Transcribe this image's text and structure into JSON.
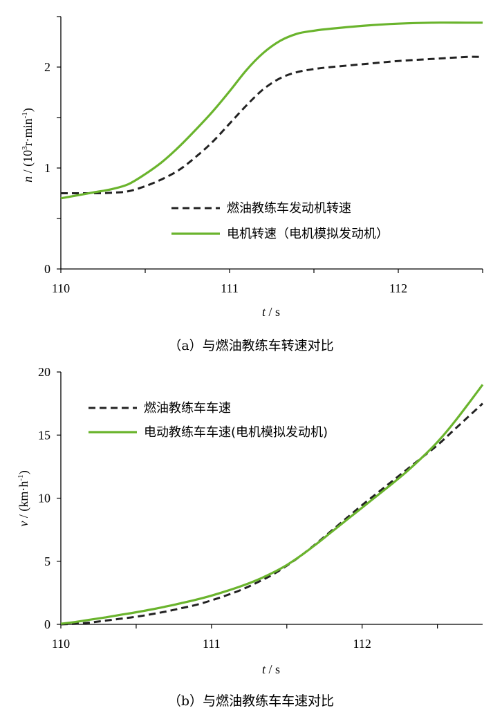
{
  "chart_data": [
    {
      "type": "line",
      "caption": "（a）与燃油教练车转速对比",
      "xlabel_var": "t",
      "xlabel_unit": "s",
      "ylabel_var": "n",
      "ylabel_unit_pre": "(10",
      "ylabel_unit_sup": "3",
      "ylabel_unit_mid": "r·min",
      "ylabel_unit_sup2": "-1",
      "ylabel_unit_post": ")",
      "xlim": [
        110,
        112.5
      ],
      "ylim": [
        0,
        2.5
      ],
      "xticks": [
        110,
        111,
        112
      ],
      "xtick_labels": [
        "110",
        "111",
        "112"
      ],
      "xminor": [
        110.5,
        111.5,
        112.5
      ],
      "yticks": [
        0,
        1,
        2
      ],
      "ytick_labels": [
        "0",
        "1",
        "2"
      ],
      "yminor": [
        0.5,
        1.5,
        2.5
      ],
      "legend_position": "center-right",
      "series": [
        {
          "name": "燃油教练车发动机转速",
          "style": "dashed",
          "color": "#222222",
          "points": [
            [
              110,
              0.75
            ],
            [
              110.1,
              0.75
            ],
            [
              110.2,
              0.75
            ],
            [
              110.3,
              0.755
            ],
            [
              110.4,
              0.77
            ],
            [
              110.5,
              0.82
            ],
            [
              110.6,
              0.89
            ],
            [
              110.7,
              0.98
            ],
            [
              110.8,
              1.11
            ],
            [
              110.9,
              1.26
            ],
            [
              111.0,
              1.44
            ],
            [
              111.1,
              1.62
            ],
            [
              111.2,
              1.78
            ],
            [
              111.3,
              1.89
            ],
            [
              111.4,
              1.95
            ],
            [
              111.5,
              1.98
            ],
            [
              111.6,
              2.0
            ],
            [
              111.8,
              2.03
            ],
            [
              112.0,
              2.06
            ],
            [
              112.2,
              2.08
            ],
            [
              112.4,
              2.1
            ],
            [
              112.5,
              2.1
            ]
          ]
        },
        {
          "name": "电机转速（电机模拟发动机）",
          "style": "solid",
          "color": "#6ab42d",
          "points": [
            [
              110,
              0.7
            ],
            [
              110.1,
              0.73
            ],
            [
              110.2,
              0.76
            ],
            [
              110.3,
              0.79
            ],
            [
              110.4,
              0.84
            ],
            [
              110.5,
              0.94
            ],
            [
              110.6,
              1.06
            ],
            [
              110.7,
              1.21
            ],
            [
              110.8,
              1.38
            ],
            [
              110.9,
              1.56
            ],
            [
              111.0,
              1.76
            ],
            [
              111.1,
              1.97
            ],
            [
              111.2,
              2.14
            ],
            [
              111.3,
              2.26
            ],
            [
              111.4,
              2.33
            ],
            [
              111.5,
              2.36
            ],
            [
              111.6,
              2.38
            ],
            [
              111.8,
              2.41
            ],
            [
              112.0,
              2.43
            ],
            [
              112.2,
              2.44
            ],
            [
              112.4,
              2.44
            ],
            [
              112.5,
              2.44
            ]
          ]
        }
      ]
    },
    {
      "type": "line",
      "caption": "（b）与燃油教练车车速对比",
      "xlabel_var": "t",
      "xlabel_unit": "s",
      "ylabel_var": "v",
      "ylabel_unit_pre": "(km·h",
      "ylabel_unit_sup": "-1",
      "ylabel_unit_post": ")",
      "xlim": [
        110,
        112.8
      ],
      "ylim": [
        0,
        20
      ],
      "xticks": [
        110,
        111,
        112
      ],
      "xtick_labels": [
        "110",
        "111",
        "112"
      ],
      "xminor": [
        110.5,
        111.5,
        112.5
      ],
      "yticks": [
        0,
        5,
        10,
        15,
        20
      ],
      "ytick_labels": [
        "0",
        "5",
        "10",
        "15",
        "20"
      ],
      "legend_position": "top-left",
      "series": [
        {
          "name": "燃油教练车车速",
          "style": "dashed",
          "color": "#222222",
          "points": [
            [
              110,
              0
            ],
            [
              110.1,
              0.05
            ],
            [
              110.2,
              0.15
            ],
            [
              110.3,
              0.3
            ],
            [
              110.4,
              0.45
            ],
            [
              110.5,
              0.6
            ],
            [
              110.6,
              0.8
            ],
            [
              110.7,
              1.02
            ],
            [
              110.8,
              1.28
            ],
            [
              110.9,
              1.55
            ],
            [
              111.0,
              1.9
            ],
            [
              111.1,
              2.3
            ],
            [
              111.2,
              2.75
            ],
            [
              111.3,
              3.3
            ],
            [
              111.4,
              3.9
            ],
            [
              111.5,
              4.65
            ],
            [
              111.6,
              5.5
            ],
            [
              111.7,
              6.45
            ],
            [
              111.8,
              7.45
            ],
            [
              111.9,
              8.45
            ],
            [
              112.0,
              9.45
            ],
            [
              112.1,
              10.4
            ],
            [
              112.2,
              11.35
            ],
            [
              112.3,
              12.3
            ],
            [
              112.4,
              13.25
            ],
            [
              112.5,
              14.2
            ],
            [
              112.6,
              15.3
            ],
            [
              112.7,
              16.4
            ],
            [
              112.8,
              17.5
            ]
          ]
        },
        {
          "name": "电动教练车车速(电机模拟发动机)",
          "style": "solid",
          "color": "#6ab42d",
          "points": [
            [
              110,
              0.05
            ],
            [
              110.1,
              0.2
            ],
            [
              110.2,
              0.38
            ],
            [
              110.3,
              0.56
            ],
            [
              110.4,
              0.76
            ],
            [
              110.5,
              0.96
            ],
            [
              110.6,
              1.18
            ],
            [
              110.7,
              1.42
            ],
            [
              110.8,
              1.68
            ],
            [
              110.9,
              1.96
            ],
            [
              111.0,
              2.28
            ],
            [
              111.1,
              2.64
            ],
            [
              111.2,
              3.04
            ],
            [
              111.3,
              3.5
            ],
            [
              111.4,
              4.05
            ],
            [
              111.5,
              4.7
            ],
            [
              111.6,
              5.5
            ],
            [
              111.7,
              6.4
            ],
            [
              111.8,
              7.35
            ],
            [
              111.9,
              8.3
            ],
            [
              112.0,
              9.25
            ],
            [
              112.1,
              10.2
            ],
            [
              112.2,
              11.15
            ],
            [
              112.3,
              12.15
            ],
            [
              112.4,
              13.25
            ],
            [
              112.5,
              14.45
            ],
            [
              112.6,
              15.85
            ],
            [
              112.7,
              17.4
            ],
            [
              112.8,
              19.0
            ]
          ]
        }
      ]
    }
  ]
}
